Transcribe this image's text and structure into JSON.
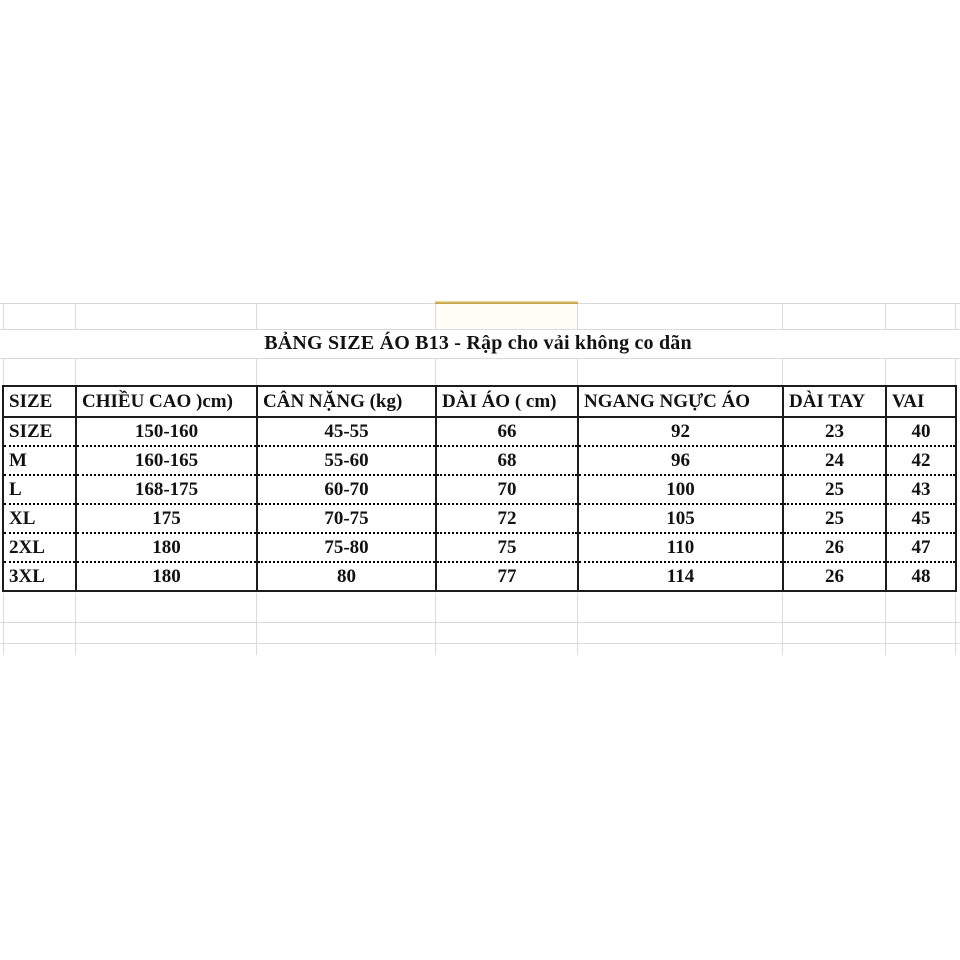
{
  "colors": {
    "grid": "#d7dbe0",
    "gold": "#d4b359",
    "cream": "#fffef5",
    "border": "#1c1c1c",
    "text": "#121212",
    "bg": "#ffffff"
  },
  "title": {
    "text": "BẢNG SIZE ÁO B13 - Rập cho vải không co dãn"
  },
  "size_chart": {
    "columns": [
      "SIZE",
      "CHIỀU CAO )cm)",
      "CÂN NẶNG (kg)",
      "DÀI ÁO ( cm)",
      "NGANG NGỰC ÁO",
      "DÀI TAY",
      "VAI"
    ],
    "rows": [
      {
        "label": "SIZE",
        "values": [
          "150-160",
          "45-55",
          "66",
          "92",
          "23",
          "40"
        ]
      },
      {
        "label": "M",
        "values": [
          "160-165",
          "55-60",
          "68",
          "96",
          "24",
          "42"
        ]
      },
      {
        "label": "L",
        "values": [
          "168-175",
          "60-70",
          "70",
          "100",
          "25",
          "43"
        ]
      },
      {
        "label": "XL",
        "values": [
          "175",
          "70-75",
          "72",
          "105",
          "25",
          "45"
        ]
      },
      {
        "label": "2XL",
        "values": [
          "180",
          "75-80",
          "75",
          "110",
          "26",
          "47"
        ]
      },
      {
        "label": "3XL",
        "values": [
          "180",
          "80",
          "77",
          "114",
          "26",
          "48"
        ]
      }
    ]
  }
}
